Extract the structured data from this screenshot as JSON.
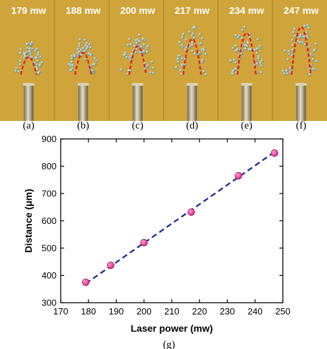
{
  "panels": [
    {
      "power_label": "179 mw",
      "letter": "(a)",
      "arc_peak": 0.3
    },
    {
      "power_label": "188 mw",
      "letter": "(b)",
      "arc_peak": 0.4
    },
    {
      "power_label": "200 mw",
      "letter": "(c)",
      "arc_peak": 0.55
    },
    {
      "power_label": "217 mw",
      "letter": "(d)",
      "arc_peak": 0.72
    },
    {
      "power_label": "234 mw",
      "letter": "(e)",
      "arc_peak": 0.86
    },
    {
      "power_label": "247 mw",
      "letter": "(f)",
      "arc_peak": 1.0
    }
  ],
  "colors": {
    "photo_background": "#cfa43a",
    "label_text": "#ffffff",
    "particle": "#9ab9a7",
    "trajectory": "#e8201c",
    "fiber": "#b8ae8c",
    "fit_line": "#1f2f9c",
    "marker": "#e0127a"
  },
  "chart_data": {
    "type": "scatter",
    "xlabel": "Laser power (mw)",
    "ylabel": "Distance (μm)",
    "xlim": [
      170,
      250
    ],
    "ylim": [
      300,
      900
    ],
    "xticks": [
      170,
      180,
      190,
      200,
      210,
      220,
      230,
      240,
      250
    ],
    "yticks": [
      300,
      400,
      500,
      600,
      700,
      800,
      900
    ],
    "points": [
      {
        "x": 179,
        "y": 375
      },
      {
        "x": 188,
        "y": 437
      },
      {
        "x": 200,
        "y": 520
      },
      {
        "x": 217,
        "y": 632
      },
      {
        "x": 234,
        "y": 765
      },
      {
        "x": 247,
        "y": 848
      }
    ],
    "fit_line": {
      "style": "dashed",
      "from": {
        "x": 179,
        "y": 370
      },
      "to": {
        "x": 247,
        "y": 852
      }
    },
    "grid": false,
    "caption": "(g)"
  }
}
